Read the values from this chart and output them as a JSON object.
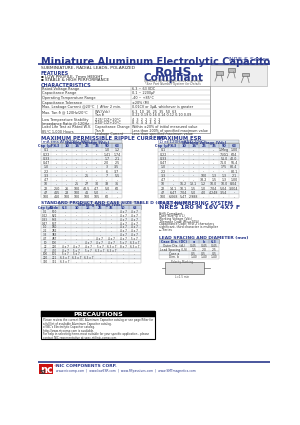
{
  "title": "Miniature Aluminum Electrolytic Capacitors",
  "series": "NRE-S Series",
  "subtitle": "SUBMINIATURE, RADIAL LEADS, POLARIZED",
  "features_label": "FEATURES",
  "features": [
    "LOW PROFILE, 7mm HEIGHT",
    "STABLE & HIGH PERFORMANCE"
  ],
  "char_label": "CHARACTERISTICS",
  "rohs_line1": "RoHS",
  "rohs_line2": "Compliant",
  "rohs_sub": "Includes all homogeneous materials",
  "part_note": "*See Part Number System for Details",
  "ripple_title": "MAXIMUM PERMISSIBLE RIPPLE CURRENT",
  "ripple_sub": "(mA rms AT 120Hz AND 85°C)",
  "esr_title": "MAXIMUM ESR",
  "esr_sub": "(Ω at 120Hz AND 20°C)",
  "standard_title": "STANDARD PRODUCT AND CASE SIZE TABLE D (Ø x L (mm))",
  "part_num_title": "PART NUMBERING SYSTEM",
  "part_num_example": "NRES 1R0 M 16V 4X7 F",
  "lead_title": "LEAD SPACING AND DIAMETER (mm)",
  "precautions_title": "PRECAUTIONS",
  "footer_company": "NIC COMPONENTS CORP.",
  "footer_web": "www.niccomp.com  |  www.lowESR.com  |  www.RFpassives.com  |  www.SMTmagnetics.com",
  "footer_page": "52",
  "bg_color": "#FFFFFF",
  "title_color": "#2b3a8c",
  "blue_line_color": "#2b3a8c",
  "table_header_bg": "#c8d4e8",
  "rohs_color": "#2b3a8c"
}
